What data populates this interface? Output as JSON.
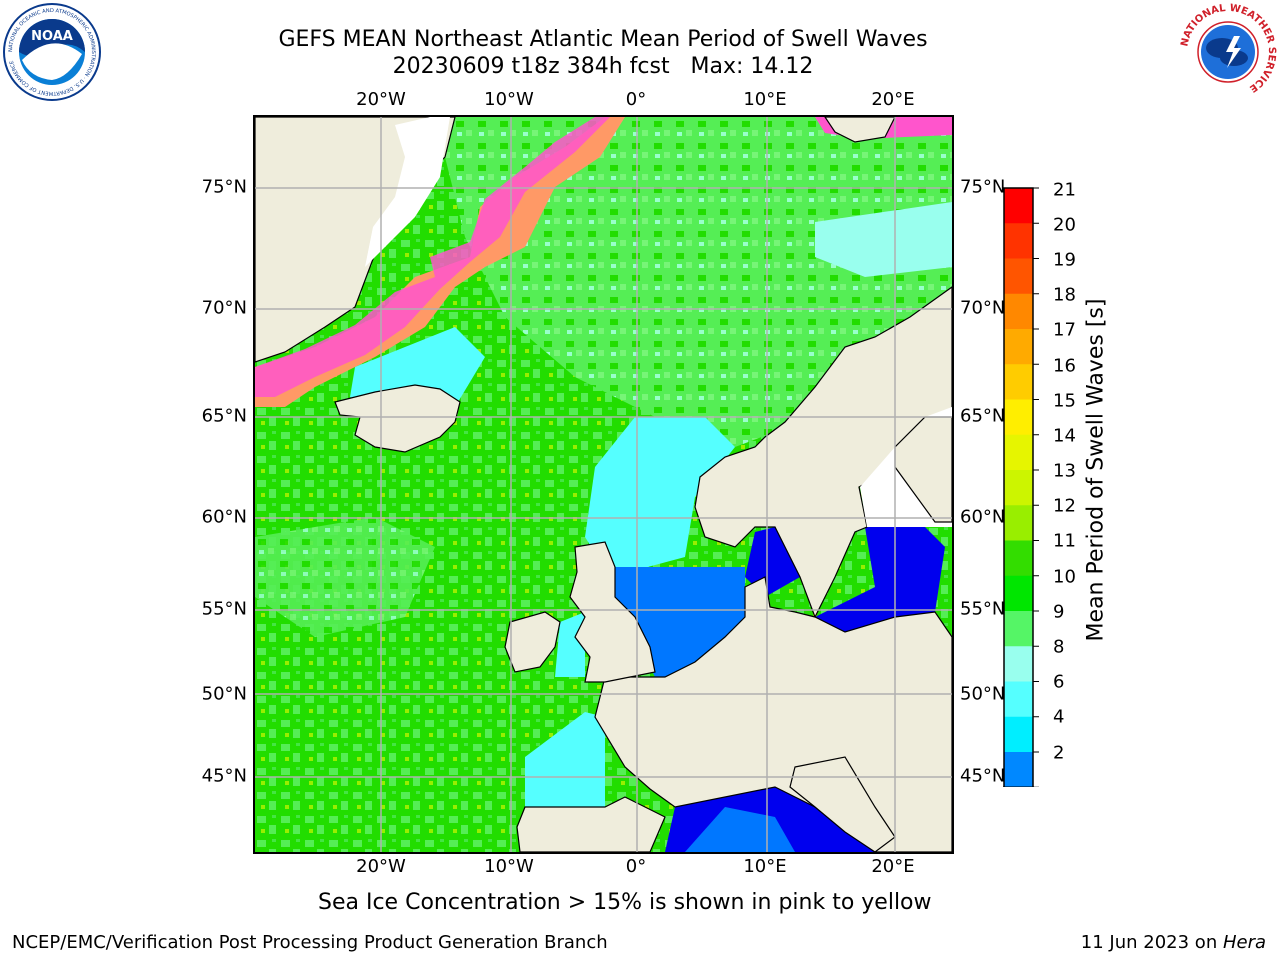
{
  "title": {
    "line1": "GEFS MEAN Northeast Atlantic Mean Period of Swell Waves",
    "line2": "20230609 t18z 384h fcst   Max: 14.12"
  },
  "axes": {
    "lon_ticks": [
      "20°W",
      "10°W",
      "0°",
      "10°E",
      "20°E"
    ],
    "lat_ticks": [
      "75°N",
      "70°N",
      "65°N",
      "60°N",
      "55°N",
      "50°N",
      "45°N"
    ]
  },
  "colorbar": {
    "label": "Mean Period of Swell Waves [s]",
    "ticks": [
      "21",
      "20",
      "19",
      "18",
      "17",
      "16",
      "15",
      "14",
      "13",
      "12",
      "11",
      "10",
      "9",
      "8",
      "6",
      "4",
      "2"
    ],
    "colors": [
      "#ff0000",
      "#ff3300",
      "#ff5500",
      "#ff8800",
      "#ffaa00",
      "#ffcc00",
      "#ffee00",
      "#e6f500",
      "#ccf500",
      "#99ee00",
      "#33dd00",
      "#00e600",
      "#55f566",
      "#99ffee",
      "#55ffff",
      "#00eeff",
      "#0088ff",
      "#0000ee"
    ]
  },
  "note": "Sea Ice Concentration > 15% is shown in pink to yellow",
  "footer": {
    "left": "NCEP/EMC/Verification Post Processing Product Generation Branch",
    "date": "11 Jun 2023 on ",
    "machine": "Hera"
  },
  "logos": {
    "noaa_text": "NOAA",
    "noaa_ring": "NATIONAL OCEANIC AND ATMOSPHERIC ADMINISTRATION · U.S. DEPARTMENT OF COMMERCE",
    "nws_ring": "NATIONAL WEATHER SERVICE"
  },
  "colors": {
    "land": "#efeddc",
    "ocean_green": "#22dd00",
    "ocean_light_green": "#55ee55",
    "ocean_cyan": "#55ffff",
    "ocean_blue": "#0077ff",
    "ocean_deep_blue": "#0000ee",
    "sea_ice_pink": "#ff55cc",
    "sea_ice_orange": "#ff9966",
    "grid": "#b0b0b0"
  }
}
